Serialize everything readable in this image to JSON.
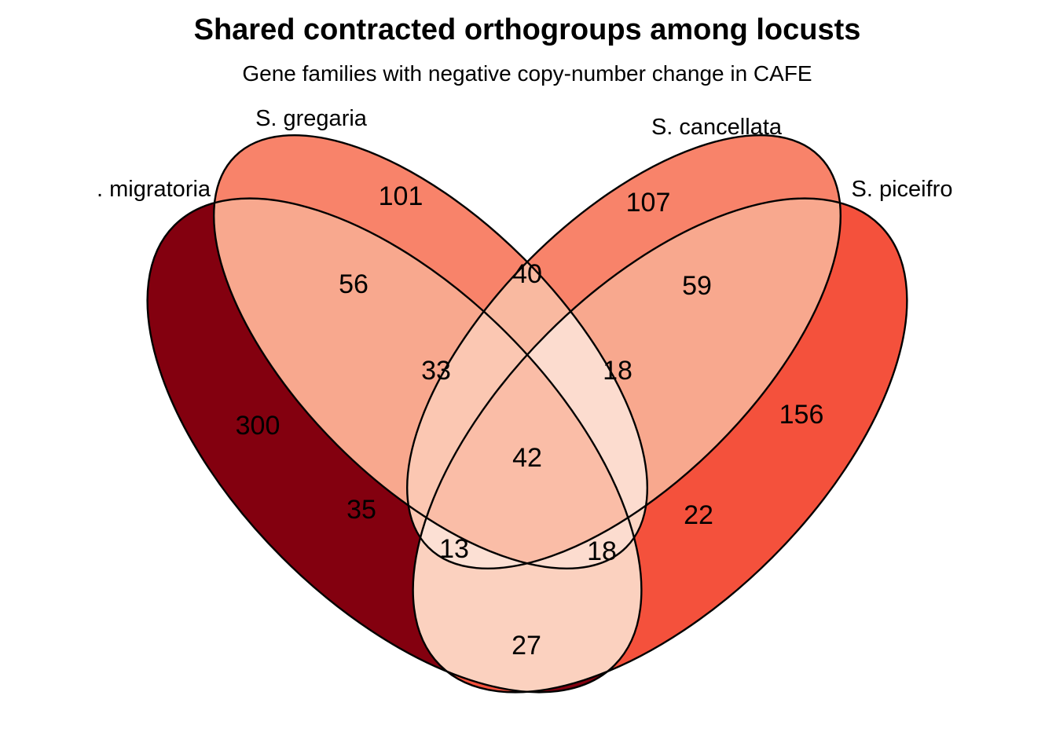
{
  "title": "Shared contracted orthogroups among locusts",
  "subtitle": "Gene families with negative copy-number change in CAFE",
  "sets": [
    {
      "id": "A",
      "label": ". migratoria",
      "color": "#83000f"
    },
    {
      "id": "B",
      "label": "S. gregaria",
      "color": "#f8836a"
    },
    {
      "id": "C",
      "label": "S. cancellata",
      "color": "#f8836a"
    },
    {
      "id": "D",
      "label": "S. piceifro",
      "color": "#f4513c"
    }
  ],
  "regions": [
    {
      "id": "A",
      "label": "300",
      "color": "#83000f"
    },
    {
      "id": "B",
      "label": "101",
      "color": "#f8836a"
    },
    {
      "id": "C",
      "label": "107",
      "color": "#f8836a"
    },
    {
      "id": "D",
      "label": "156",
      "color": "#f4513c"
    },
    {
      "id": "AB",
      "label": "56",
      "color": "#f8a88e"
    },
    {
      "id": "BC",
      "label": "40",
      "color": "#f9b9a0"
    },
    {
      "id": "CD",
      "label": "59",
      "color": "#f8a88e"
    },
    {
      "id": "ABC",
      "label": "33",
      "color": "#fbc7b2"
    },
    {
      "id": "BCD",
      "label": "18",
      "color": "#fcdccf"
    },
    {
      "id": "AC",
      "label": "35",
      "color": "#fbc7b2"
    },
    {
      "id": "BD",
      "label": "22",
      "color": "#fbd5c3"
    },
    {
      "id": "ABCD",
      "label": "42",
      "color": "#fabda7"
    },
    {
      "id": "ACD",
      "label": "13",
      "color": "#fce0d4"
    },
    {
      "id": "ABD",
      "label": "18",
      "color": "#fcdccf"
    },
    {
      "id": "AD",
      "label": "27",
      "color": "#fbd1bf"
    }
  ]
}
